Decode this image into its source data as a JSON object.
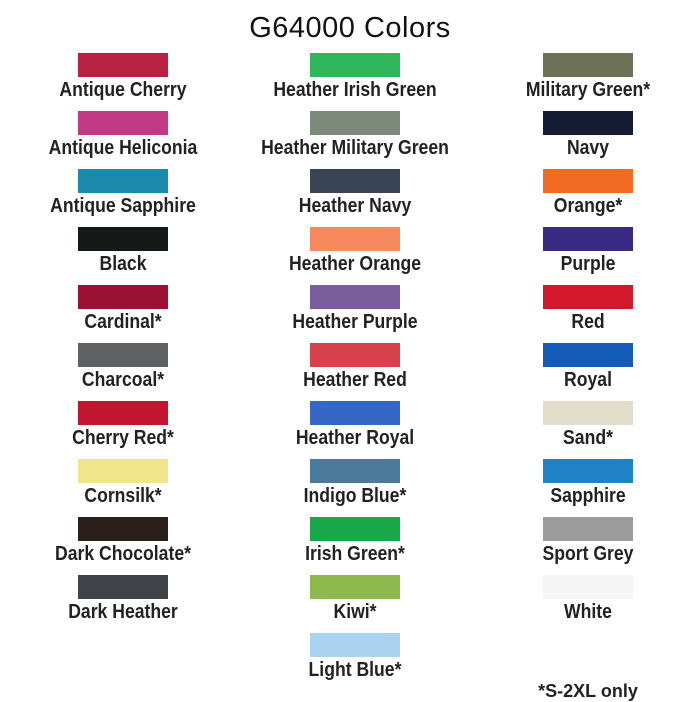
{
  "title": "G64000 Colors",
  "columns": [
    [
      {
        "name": "Antique Cherry",
        "color": "#b8213f"
      },
      {
        "name": "Antique Heliconia",
        "color": "#c23a85"
      },
      {
        "name": "Antique Sapphire",
        "color": "#1a8aad"
      },
      {
        "name": "Black",
        "color": "#141a1a"
      },
      {
        "name": "Cardinal*",
        "color": "#9a1134"
      },
      {
        "name": "Charcoal*",
        "color": "#5f6163"
      },
      {
        "name": "Cherry Red*",
        "color": "#c21530"
      },
      {
        "name": "Cornsilk*",
        "color": "#f2e48a"
      },
      {
        "name": "Dark Chocolate*",
        "color": "#2a1f1a"
      },
      {
        "name": "Dark Heather",
        "color": "#3f4247"
      }
    ],
    [
      {
        "name": "Heather Irish Green",
        "color": "#2fb55a"
      },
      {
        "name": "Heather Military Green",
        "color": "#7b8a7a"
      },
      {
        "name": "Heather Navy",
        "color": "#3a4458"
      },
      {
        "name": "Heather Orange",
        "color": "#f7895f"
      },
      {
        "name": "Heather Purple",
        "color": "#7a5d9c"
      },
      {
        "name": "Heather Red",
        "color": "#d8404b"
      },
      {
        "name": "Heather Royal",
        "color": "#3568c4"
      },
      {
        "name": "Indigo Blue*",
        "color": "#4a7a9c"
      },
      {
        "name": "Irish Green*",
        "color": "#17a84a"
      },
      {
        "name": "Kiwi*",
        "color": "#8cba4e"
      },
      {
        "name": "Light Blue*",
        "color": "#a9d3ee"
      }
    ],
    [
      {
        "name": "Military Green*",
        "color": "#6d7257"
      },
      {
        "name": "Navy",
        "color": "#161c33"
      },
      {
        "name": "Orange*",
        "color": "#f36b22"
      },
      {
        "name": "Purple",
        "color": "#3b2a83"
      },
      {
        "name": "Red",
        "color": "#d2192b"
      },
      {
        "name": "Royal",
        "color": "#135cba"
      },
      {
        "name": "Sand*",
        "color": "#e2dccb"
      },
      {
        "name": "Sapphire",
        "color": "#1f82c5"
      },
      {
        "name": "Sport Grey",
        "color": "#9c9c9c"
      },
      {
        "name": "White",
        "color": "#f5f5f5"
      }
    ]
  ],
  "footnote": "*S-2XL only"
}
